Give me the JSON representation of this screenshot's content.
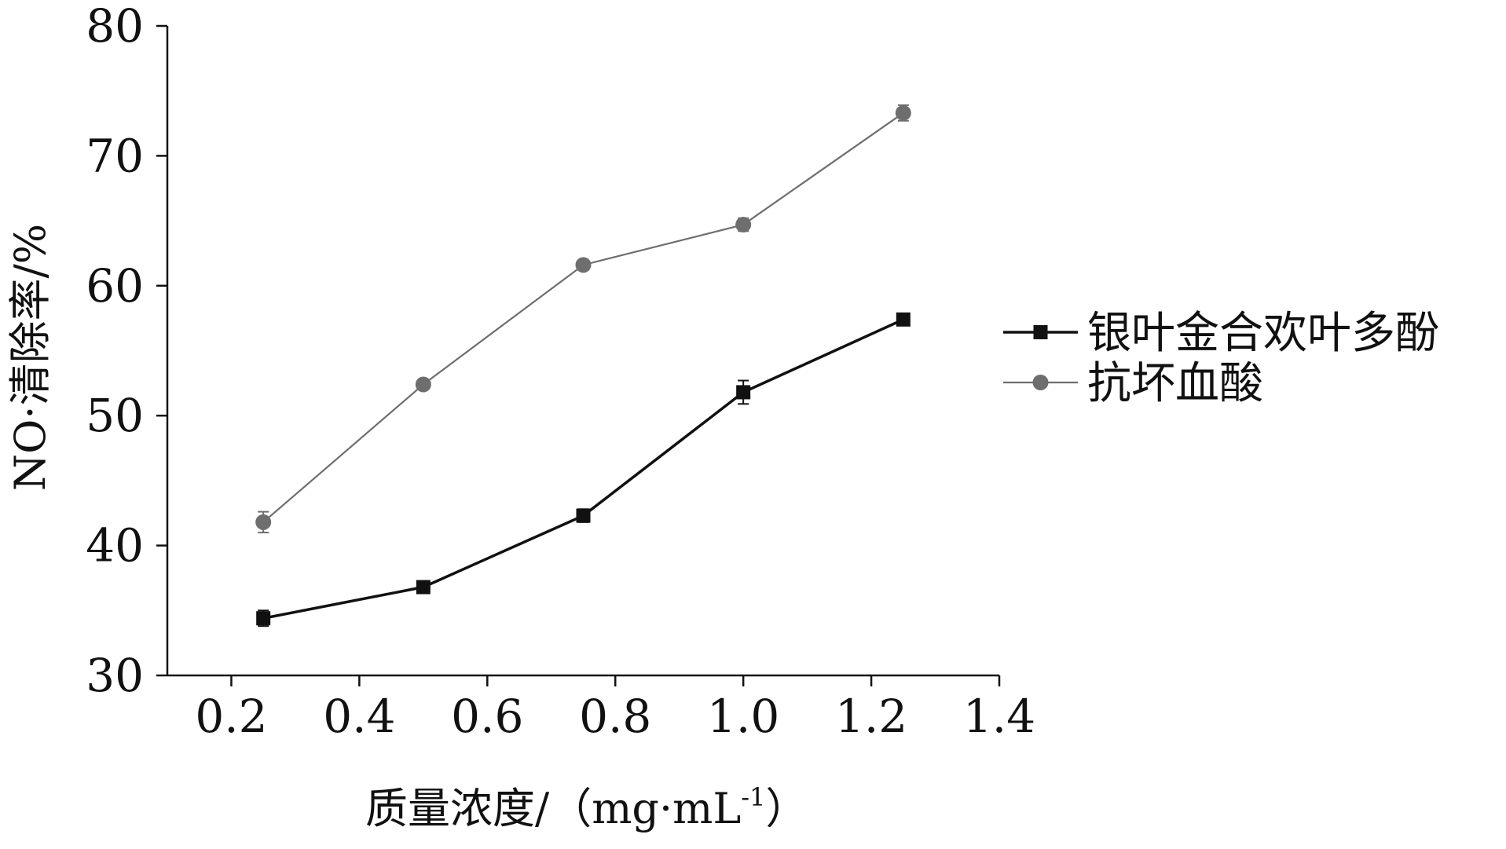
{
  "chart_data": {
    "type": "line",
    "title": "",
    "xlabel": "质量浓度/（mg·mL",
    "xlabel_sup": "-1",
    "xlabel_end": "）",
    "ylabel": "NO·清除率/%",
    "xlim": [
      0.1,
      1.4
    ],
    "ylim": [
      30,
      80
    ],
    "x_ticks": [
      0.2,
      0.4,
      0.6,
      0.8,
      1.0,
      1.2,
      1.4
    ],
    "x_tick_labels": [
      "0.2",
      "0.4",
      "0.6",
      "0.8",
      "1.0",
      "1.2",
      "1.4"
    ],
    "y_ticks": [
      30,
      40,
      50,
      60,
      70,
      80
    ],
    "y_tick_labels": [
      "30",
      "40",
      "50",
      "60",
      "70",
      "80"
    ],
    "grid": false,
    "legend_position": "right",
    "x": [
      0.25,
      0.5,
      0.75,
      1.0,
      1.25
    ],
    "series": [
      {
        "name": "银叶金合欢叶多酚",
        "values": [
          34.4,
          36.8,
          42.3,
          51.8,
          57.4
        ],
        "errors": [
          0.6,
          0.4,
          0.5,
          0.9,
          0.3
        ],
        "color": "#111111",
        "marker": "square"
      },
      {
        "name": "抗坏血酸",
        "values": [
          41.8,
          52.4,
          61.6,
          64.7,
          73.3
        ],
        "errors": [
          0.8,
          0.3,
          0.4,
          0.5,
          0.6
        ],
        "color": "#6e6e6e",
        "marker": "circle"
      }
    ]
  }
}
